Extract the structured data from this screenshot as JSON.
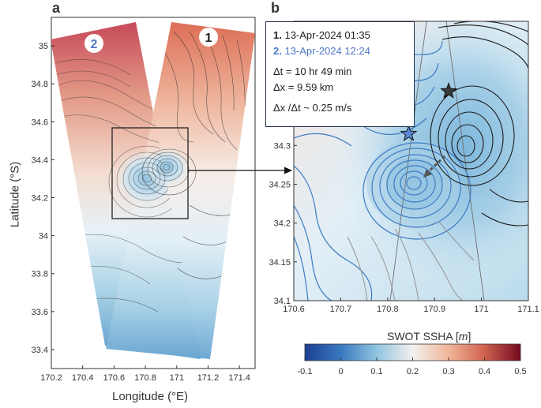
{
  "panels": {
    "a": {
      "letter": "a",
      "xlabel": "Longitude (°E)",
      "ylabel": "Latitude (°S)",
      "xticks": [
        "170.2",
        "170.4",
        "170.6",
        "170.8",
        "171",
        "171.2",
        "171.4"
      ],
      "yticks": [
        "35",
        "34.8",
        "34.6",
        "34.4",
        "34.2",
        "34",
        "33.8",
        "33.6",
        "33.4"
      ],
      "xlim": [
        170.2,
        171.5
      ],
      "ylim": [
        33.3,
        35.15
      ],
      "pass_labels": [
        "2",
        "1"
      ],
      "zoom_box": {
        "lon": [
          170.6,
          171.1
        ],
        "lat": [
          34.1,
          34.6
        ]
      }
    },
    "b": {
      "letter": "b",
      "xticks": [
        "170.6",
        "170.7",
        "170.8",
        "170.9",
        "171",
        "171.1"
      ],
      "yticks": [
        "34.4",
        "34.35",
        "34.3",
        "34.25",
        "34.2",
        "34.15",
        "34.1"
      ],
      "xlim": [
        170.6,
        171.1
      ],
      "ylim": [
        34.1,
        34.46
      ],
      "eddy_centers": [
        {
          "pass": "1",
          "lon": 170.93,
          "lat": 34.37,
          "color": "#3a3a3a"
        },
        {
          "pass": "2",
          "lon": 170.845,
          "lat": 34.315,
          "color": "#5a86d6"
        }
      ]
    }
  },
  "info": {
    "line1_num": "1.",
    "line1_text": "13-Apr-2024 01:35",
    "line2_num": "2.",
    "line2_text": "13-Apr-2024 12:24",
    "dt": "Δt = 10 hr 49 min",
    "dx": "Δx =  9.59 km",
    "speed": "Δx /Δt ~ 0.25 m/s"
  },
  "colorbar": {
    "title": "SWOT SSHA",
    "unit": "m",
    "ticks": [
      "-0.1",
      "0",
      "0.1",
      "0.2",
      "0.3",
      "0.4",
      "0.5"
    ],
    "range": [
      -0.1,
      0.5
    ],
    "colormap": [
      "#1c3f93",
      "#3b7ac0",
      "#8fc3df",
      "#f3f0ee",
      "#f0b598",
      "#d06350",
      "#750a1f"
    ]
  }
}
